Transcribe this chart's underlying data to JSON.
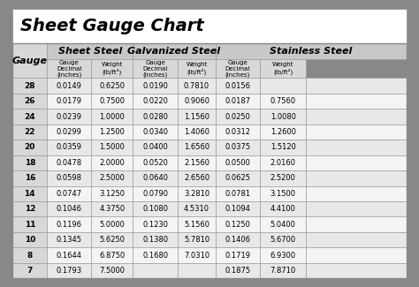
{
  "title": "Sheet Gauge Chart",
  "background_outer": "#888888",
  "background_inner": "#f0f0f0",
  "header_bg": "#d0d0d0",
  "row_bg_even": "#e8e8e8",
  "row_bg_odd": "#f8f8f8",
  "col_header_bg": "#c8c8c8",
  "gauges": [
    28,
    26,
    24,
    22,
    20,
    18,
    16,
    14,
    12,
    11,
    10,
    8,
    7
  ],
  "sheet_steel": [
    [
      "0.0149",
      "0.6250"
    ],
    [
      "0.0179",
      "0.7500"
    ],
    [
      "0.0239",
      "1.0000"
    ],
    [
      "0.0299",
      "1.2500"
    ],
    [
      "0.0359",
      "1.5000"
    ],
    [
      "0.0478",
      "2.0000"
    ],
    [
      "0.0598",
      "2.5000"
    ],
    [
      "0.0747",
      "3.1250"
    ],
    [
      "0.1046",
      "4.3750"
    ],
    [
      "0.1196",
      "5.0000"
    ],
    [
      "0.1345",
      "5.6250"
    ],
    [
      "0.1644",
      "6.8750"
    ],
    [
      "0.1793",
      "7.5000"
    ]
  ],
  "galvanized_steel": [
    [
      "0.0190",
      "0.7810"
    ],
    [
      "0.0220",
      "0.9060"
    ],
    [
      "0.0280",
      "1.1560"
    ],
    [
      "0.0340",
      "1.4060"
    ],
    [
      "0.0400",
      "1.6560"
    ],
    [
      "0.0520",
      "2.1560"
    ],
    [
      "0.0640",
      "2.6560"
    ],
    [
      "0.0790",
      "3.2810"
    ],
    [
      "0.1080",
      "4.5310"
    ],
    [
      "0.1230",
      "5.1560"
    ],
    [
      "0.1380",
      "5.7810"
    ],
    [
      "0.1680",
      "7.0310"
    ],
    [
      "",
      ""
    ]
  ],
  "stainless_steel": [
    [
      "0.0156",
      ""
    ],
    [
      "0.0187",
      "0.7560"
    ],
    [
      "0.0250",
      "1.0080"
    ],
    [
      "0.0312",
      "1.2600"
    ],
    [
      "0.0375",
      "1.5120"
    ],
    [
      "0.0500",
      "2.0160"
    ],
    [
      "0.0625",
      "2.5200"
    ],
    [
      "0.0781",
      "3.1500"
    ],
    [
      "0.1094",
      "4.4100"
    ],
    [
      "0.1250",
      "5.0400"
    ],
    [
      "0.1406",
      "5.6700"
    ],
    [
      "0.1719",
      "6.9300"
    ],
    [
      "0.1875",
      "7.8710"
    ]
  ]
}
